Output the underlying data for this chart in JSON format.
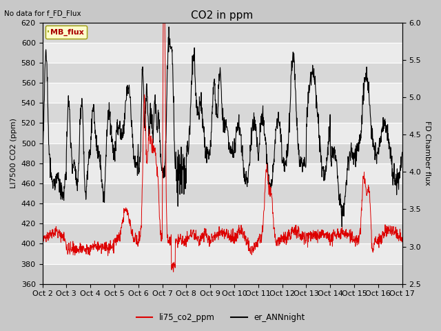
{
  "title": "CO2 in ppm",
  "top_left_text": "No data for f_FD_Flux",
  "ylabel_left": "LI7500 CO2 (ppm)",
  "ylabel_right": "FD Chamber flux",
  "ylim_left": [
    360,
    620
  ],
  "ylim_right": [
    2.5,
    6.0
  ],
  "yticks_left": [
    360,
    380,
    400,
    420,
    440,
    460,
    480,
    500,
    520,
    540,
    560,
    580,
    600,
    620
  ],
  "yticks_right": [
    2.5,
    3.0,
    3.5,
    4.0,
    4.5,
    5.0,
    5.5,
    6.0
  ],
  "xtick_labels": [
    "Oct 2",
    "Oct 3",
    "Oct 4",
    "Oct 5",
    "Oct 6",
    "Oct 7",
    "Oct 8",
    "Oct 9",
    "Oct 10",
    "Oct 11",
    "Oct 12",
    "Oct 13",
    "Oct 14",
    "Oct 15",
    "Oct 16",
    "Oct 17"
  ],
  "legend_box_label": "MB_flux",
  "legend_entries": [
    "li75_co2_ppm",
    "er_ANNnight"
  ],
  "line_color_red": "#dd0000",
  "line_color_black": "#000000",
  "plot_bg_color_light": "#f0f0f0",
  "plot_bg_color_dark": "#dcdcdc",
  "grid_color": "#ffffff",
  "title_fontsize": 11,
  "label_fontsize": 8,
  "tick_fontsize": 8
}
